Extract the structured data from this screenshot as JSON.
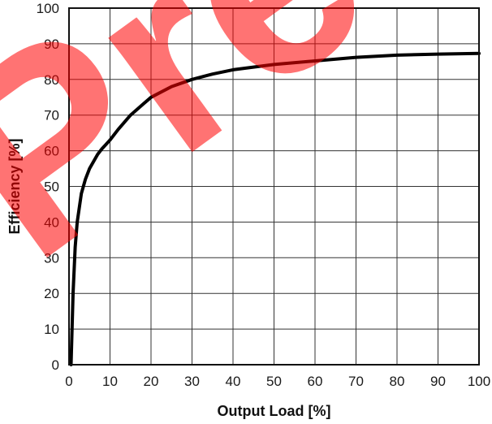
{
  "chart_data": {
    "type": "line",
    "title": "",
    "xlabel": "Output Load [%]",
    "ylabel": "Efficiency [%]",
    "xlim": [
      0,
      100
    ],
    "ylim": [
      0,
      100
    ],
    "xticks": [
      0,
      10,
      20,
      30,
      40,
      50,
      60,
      70,
      80,
      90,
      100
    ],
    "yticks": [
      0,
      10,
      20,
      30,
      40,
      50,
      60,
      70,
      80,
      90,
      100
    ],
    "grid": true,
    "legend": "none",
    "series": [
      {
        "color": "#000000",
        "x": [
          0.5,
          1,
          1.5,
          2,
          3,
          4,
          5,
          6,
          7,
          8,
          10,
          12,
          15,
          18,
          20,
          25,
          30,
          35,
          40,
          50,
          60,
          70,
          80,
          90,
          100
        ],
        "y": [
          0,
          20,
          33,
          40,
          48,
          52,
          55,
          57,
          59,
          60.5,
          63,
          66,
          70,
          73,
          75,
          78,
          80,
          81.5,
          82.7,
          84.2,
          85.2,
          86.2,
          86.8,
          87.1,
          87.3
        ]
      }
    ]
  },
  "watermark": {
    "text": "Pre",
    "color": "#ff0000"
  }
}
